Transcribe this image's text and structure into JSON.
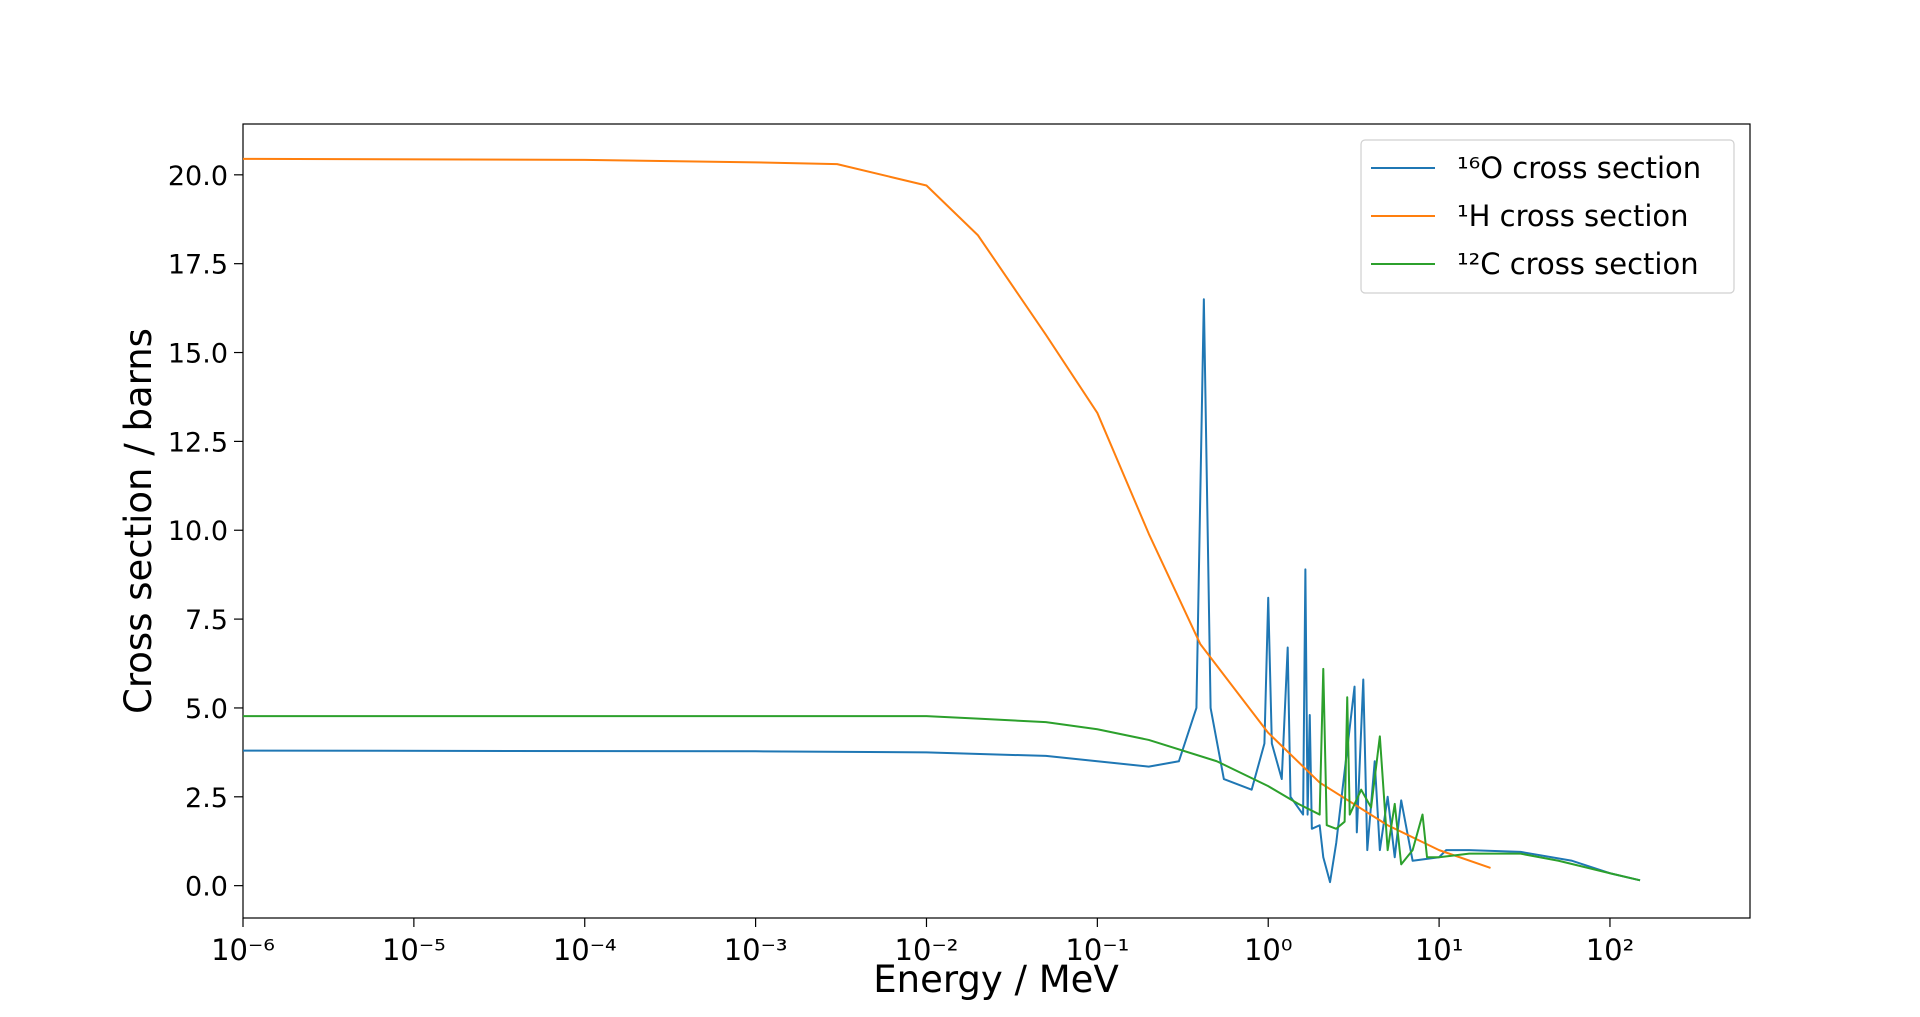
{
  "chart_data": {
    "type": "line",
    "xlabel": "Energy / MeV",
    "ylabel": "Cross section / barns",
    "xscale": "log",
    "xlim": [
      1e-06,
      660
    ],
    "ylim": [
      -0.91,
      21.43
    ],
    "xticks": [
      {
        "value": 1e-06,
        "label": "10⁻⁶"
      },
      {
        "value": 1e-05,
        "label": "10⁻⁵"
      },
      {
        "value": 0.0001,
        "label": "10⁻⁴"
      },
      {
        "value": 0.001,
        "label": "10⁻³"
      },
      {
        "value": 0.01,
        "label": "10⁻²"
      },
      {
        "value": 0.1,
        "label": "10⁻¹"
      },
      {
        "value": 1,
        "label": "10⁰"
      },
      {
        "value": 10,
        "label": "10¹"
      },
      {
        "value": 100,
        "label": "10²"
      }
    ],
    "yticks": [
      {
        "value": 0,
        "label": "0.0"
      },
      2.5,
      {
        "value": 5,
        "label": "5.0"
      },
      7.5,
      {
        "value": 10,
        "label": "10.0"
      },
      12.5,
      {
        "value": 15,
        "label": "15.0"
      },
      17.5,
      {
        "value": 20,
        "label": "20.0"
      }
    ],
    "legend": "upper right",
    "series": [
      {
        "name": "¹⁶O cross section",
        "color": "#1f77b4",
        "x": [
          1e-06,
          0.001,
          0.01,
          0.05,
          0.1,
          0.2,
          0.3,
          0.38,
          0.42,
          0.46,
          0.55,
          0.8,
          0.95,
          1.0,
          1.05,
          1.2,
          1.3,
          1.35,
          1.6,
          1.65,
          1.7,
          1.75,
          1.8,
          2.0,
          2.1,
          2.3,
          2.5,
          3.2,
          3.3,
          3.6,
          3.8,
          4.2,
          4.5,
          5,
          5.5,
          6,
          7,
          10,
          11,
          15,
          30,
          60,
          100,
          150
        ],
        "values": [
          3.8,
          3.78,
          3.75,
          3.65,
          3.5,
          3.35,
          3.5,
          5,
          16.5,
          5,
          3,
          2.7,
          4,
          8.1,
          4,
          3,
          6.7,
          2.5,
          2,
          8.9,
          2,
          4.8,
          1.6,
          1.7,
          0.8,
          0.1,
          1.2,
          5.6,
          1.5,
          5.8,
          1.0,
          3.5,
          1.0,
          2.5,
          0.8,
          2.4,
          0.7,
          0.8,
          1.0,
          1.0,
          0.95,
          0.7,
          0.35,
          0.15
        ]
      },
      {
        "name": "¹H cross section",
        "color": "#ff7f0e",
        "x": [
          1e-06,
          0.0001,
          0.001,
          0.003,
          0.01,
          0.02,
          0.05,
          0.1,
          0.2,
          0.4,
          1,
          2,
          5,
          10,
          20
        ],
        "values": [
          20.45,
          20.42,
          20.35,
          20.3,
          19.7,
          18.3,
          15.5,
          13.3,
          9.9,
          6.8,
          4.3,
          2.9,
          1.7,
          1.0,
          0.5
        ]
      },
      {
        "name": "¹²C cross section",
        "color": "#2ca02c",
        "x": [
          1e-06,
          0.01,
          0.02,
          0.05,
          0.1,
          0.2,
          0.5,
          1,
          1.5,
          2,
          2.1,
          2.2,
          2.5,
          2.8,
          2.9,
          3.0,
          3.5,
          4,
          4.5,
          5,
          5.5,
          6,
          7,
          8,
          8.5,
          10,
          15,
          30,
          50,
          100,
          150
        ],
        "values": [
          4.77,
          4.77,
          4.7,
          4.6,
          4.4,
          4.1,
          3.5,
          2.8,
          2.3,
          2.0,
          6.1,
          1.7,
          1.6,
          1.8,
          5.3,
          2.0,
          2.7,
          2.2,
          4.2,
          1.0,
          2.3,
          0.6,
          1.0,
          2.0,
          0.8,
          0.8,
          0.9,
          0.9,
          0.7,
          0.35,
          0.15
        ]
      }
    ]
  }
}
